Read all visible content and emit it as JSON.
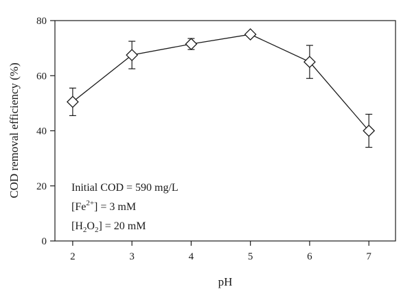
{
  "chart_data": {
    "type": "line",
    "x": [
      2,
      3,
      4,
      5,
      6,
      7
    ],
    "y": [
      50.5,
      67.5,
      71.5,
      75.0,
      65.0,
      40.0
    ],
    "error": [
      5.0,
      5.0,
      2.0,
      0.5,
      6.0,
      6.0
    ],
    "xlabel": "pH",
    "ylabel": "COD removal efficiency (%)",
    "xlim": [
      1.7,
      7.45
    ],
    "ylim": [
      0,
      80
    ],
    "xticks": [
      2,
      3,
      4,
      5,
      6,
      7
    ],
    "yticks": [
      0,
      20,
      40,
      60,
      80
    ],
    "marker": "diamond",
    "marker_fill": "#ffffff",
    "line_color": "#1a1a1a",
    "grid": false,
    "annotations": {
      "line1": "Initial COD = 590 mg/L",
      "line2": {
        "prefix": "[Fe",
        "superscript": "2+",
        "suffix": "] = 3 mM"
      },
      "line3": {
        "prefix": "[H",
        "sub1": "2",
        "middle": "O",
        "sub2": "2",
        "suffix": "] = 20 mM"
      }
    }
  }
}
